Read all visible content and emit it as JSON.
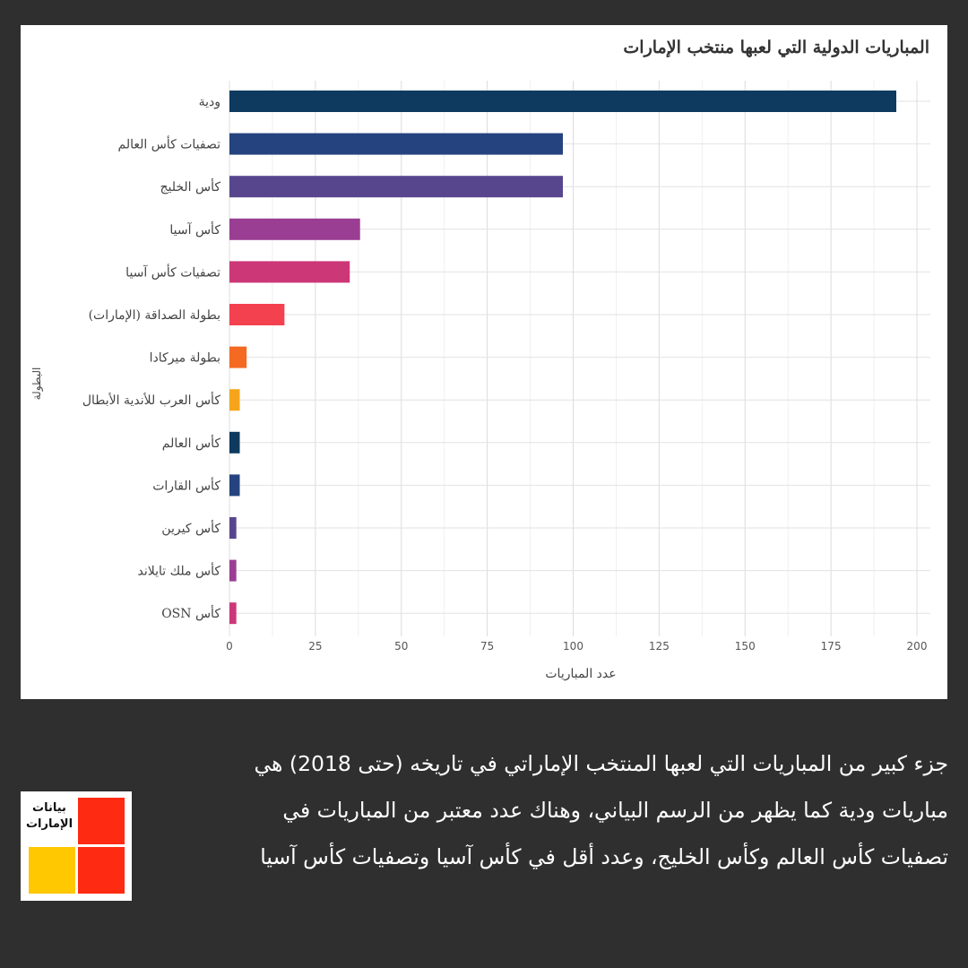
{
  "chart_data": {
    "type": "bar",
    "orientation": "horizontal",
    "title": "المباريات الدولية التي لعبها منتخب الإمارات",
    "xlabel": "عدد المباريات",
    "ylabel": "البطولة",
    "xlim": [
      0,
      205
    ],
    "xticks": [
      0,
      25,
      50,
      75,
      100,
      125,
      150,
      175,
      200
    ],
    "grid": true,
    "categories": [
      "ودية",
      "تصفيات كأس العالم",
      "كأس الخليج",
      "كأس آسيا",
      "تصفيات كأس آسيا",
      "بطولة الصداقة (الإمارات)",
      "بطولة ميركادا",
      "كأس العرب للأندية الأبطال",
      "كأس العالم",
      "كأس القارات",
      "كأس كيرين",
      "كأس ملك تايلاند",
      "كأس OSN"
    ],
    "values": [
      194,
      97,
      97,
      38,
      35,
      16,
      5,
      3,
      3,
      3,
      2,
      2,
      2
    ],
    "colors": [
      "#0d3a5e",
      "#25437f",
      "#57468e",
      "#9a3e93",
      "#cc3778",
      "#f4414f",
      "#f56a22",
      "#f6a51b",
      "#0d3a5e",
      "#25437f",
      "#57468e",
      "#9a3e93",
      "#cc3778"
    ]
  },
  "footer": {
    "text": "جزء كبير من المباريات  التي لعبها المنتخب الإماراتي في تاريخه (حتى 2018) هي مباريات ودية كما يظهر من الرسم البياني، وهناك عدد معتبر من المباريات في تصفيات كأس العالم وكأس الخليج، وعدد أقل في كأس آسيا وتصفيات كأس آسيا"
  },
  "logo": {
    "text": "بيانات الإمارات",
    "colors": {
      "red": "#ff2a12",
      "yellow": "#ffc800"
    }
  }
}
